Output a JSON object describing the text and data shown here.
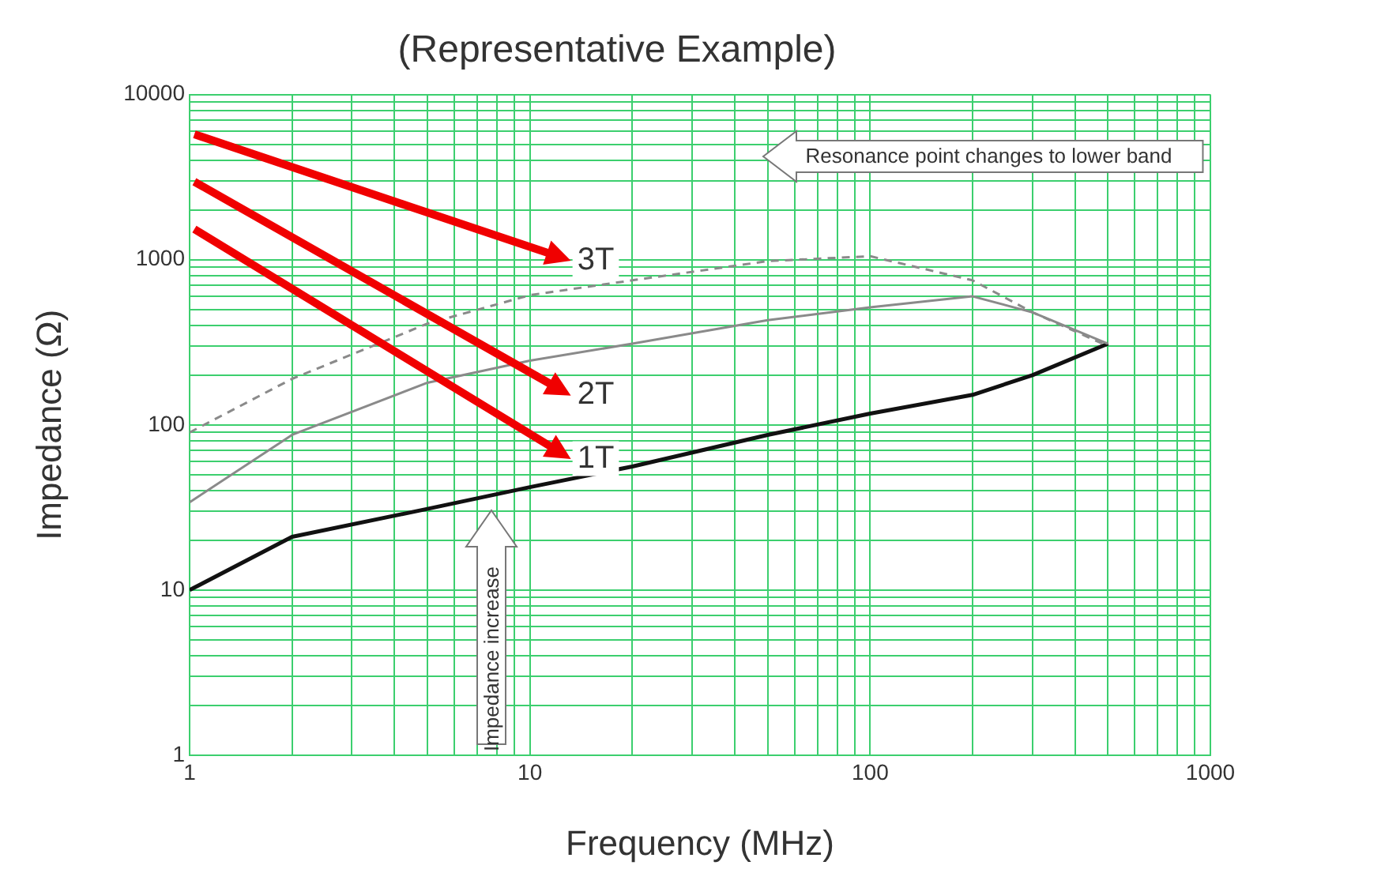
{
  "chart_data": {
    "type": "line",
    "title": "(Representative Example)",
    "xlabel": "Frequency (MHz)",
    "ylabel": "Impedance (Ω)",
    "log": "xy",
    "grid": true,
    "legend": false,
    "marker": "none",
    "x": [
      1,
      2,
      5,
      10,
      20,
      50,
      100,
      200,
      300,
      500
    ],
    "xlim": [
      1,
      1000
    ],
    "ylim": [
      1,
      10000
    ],
    "xticks": [
      1,
      {
        "value": 2,
        "label": null
      },
      {
        "value": 3,
        "label": null
      },
      {
        "value": 4,
        "label": null
      },
      {
        "value": 5,
        "label": null
      },
      {
        "value": 6,
        "label": null
      },
      {
        "value": 7,
        "label": null
      },
      {
        "value": 8,
        "label": null
      },
      {
        "value": 9,
        "label": null
      },
      10,
      {
        "value": 20,
        "label": null
      },
      {
        "value": 30,
        "label": null
      },
      {
        "value": 40,
        "label": null
      },
      {
        "value": 50,
        "label": null
      },
      {
        "value": 60,
        "label": null
      },
      {
        "value": 70,
        "label": null
      },
      {
        "value": 80,
        "label": null
      },
      {
        "value": 90,
        "label": null
      },
      100,
      {
        "value": 200,
        "label": null
      },
      {
        "value": 300,
        "label": null
      },
      {
        "value": 400,
        "label": null
      },
      {
        "value": 500,
        "label": null
      },
      {
        "value": 600,
        "label": null
      },
      {
        "value": 700,
        "label": null
      },
      {
        "value": 800,
        "label": null
      },
      {
        "value": 900,
        "label": null
      },
      1000
    ],
    "yticks": [
      1,
      {
        "value": 2,
        "label": null
      },
      {
        "value": 3,
        "label": null
      },
      {
        "value": 4,
        "label": null
      },
      {
        "value": 5,
        "label": null
      },
      {
        "value": 6,
        "label": null
      },
      {
        "value": 7,
        "label": null
      },
      {
        "value": 8,
        "label": null
      },
      {
        "value": 9,
        "label": null
      },
      10,
      {
        "value": 20,
        "label": null
      },
      {
        "value": 30,
        "label": null
      },
      {
        "value": 40,
        "label": null
      },
      {
        "value": 50,
        "label": null
      },
      {
        "value": 60,
        "label": null
      },
      {
        "value": 70,
        "label": null
      },
      {
        "value": 80,
        "label": null
      },
      {
        "value": 90,
        "label": null
      },
      100,
      {
        "value": 200,
        "label": null
      },
      {
        "value": 300,
        "label": null
      },
      {
        "value": 400,
        "label": null
      },
      {
        "value": 500,
        "label": null
      },
      {
        "value": 600,
        "label": null
      },
      {
        "value": 700,
        "label": null
      },
      {
        "value": 800,
        "label": null
      },
      {
        "value": 900,
        "label": null
      },
      1000,
      {
        "value": 2000,
        "label": null
      },
      {
        "value": 3000,
        "label": null
      },
      {
        "value": 4000,
        "label": null
      },
      {
        "value": 5000,
        "label": null
      },
      {
        "value": 6000,
        "label": null
      },
      {
        "value": 7000,
        "label": null
      },
      {
        "value": 8000,
        "label": null
      },
      {
        "value": 9000,
        "label": null
      },
      10000
    ],
    "series": [
      {
        "name": "3T",
        "color": "#8a8a8a",
        "line_style": "dashed",
        "values": [
          90,
          190,
          410,
          610,
          750,
          980,
          1050,
          750,
          480,
          300
        ]
      },
      {
        "name": "2T",
        "color": "#8a8a8a",
        "line_style": "solid",
        "values": [
          34,
          87,
          180,
          245,
          310,
          430,
          515,
          600,
          480,
          310
        ]
      },
      {
        "name": "1T",
        "color": "#111111",
        "line_style": "solid",
        "values": [
          10,
          21,
          31,
          42,
          56,
          87,
          117,
          152,
          200,
          310
        ]
      }
    ],
    "annotations": [
      "Resonance point changes to lower band",
      "Impedance increase"
    ]
  }
}
